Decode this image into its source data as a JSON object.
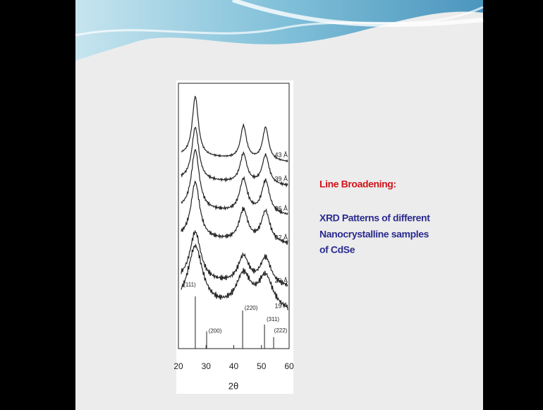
{
  "slide": {
    "heading": "Line Broadening:",
    "body": [
      "XRD Patterns of different",
      "Nanocrystalline samples",
      "of CdSe"
    ]
  },
  "figure": {
    "xlabel": "2θ",
    "xlim": [
      20,
      60
    ],
    "xticks": [
      20,
      30,
      40,
      50,
      60
    ],
    "samples": [
      "43 Å",
      "39 Å",
      "36 Å",
      "32 Å",
      "29 Å",
      "19 Å"
    ],
    "reflections": [
      {
        "label": "(111)",
        "position": 26.1,
        "intensity": 100
      },
      {
        "label": "(200)",
        "position": 30.2,
        "intensity": 33
      },
      {
        "label": "(220)",
        "position": 43.2,
        "intensity": 73
      },
      {
        "label": "(311)",
        "position": 51.1,
        "intensity": 46
      },
      {
        "label": "(222)",
        "position": 54.4,
        "intensity": 22
      }
    ]
  }
}
